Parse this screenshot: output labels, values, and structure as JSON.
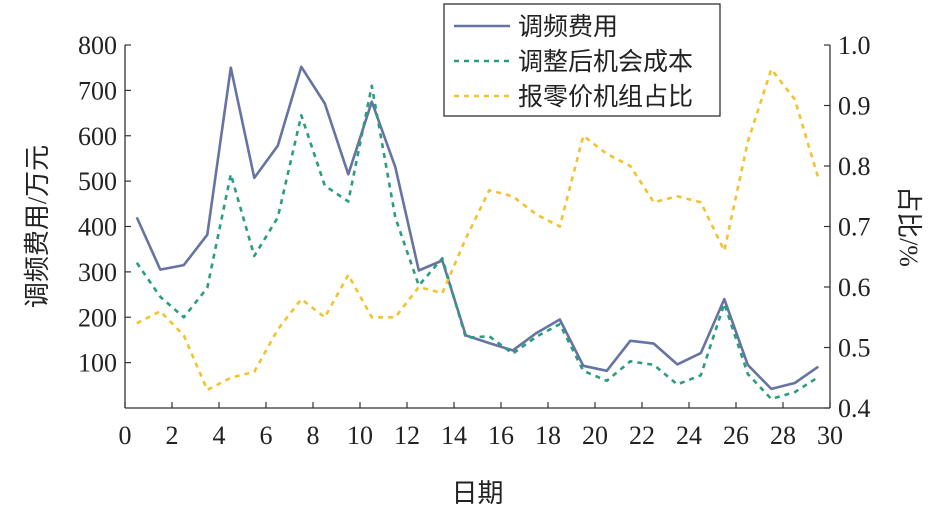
{
  "chart_data": {
    "type": "line",
    "xlabel": "日期",
    "ylabel": "调频费用/万元",
    "y2label": "占比/%",
    "xlim": [
      0,
      30
    ],
    "ylim": [
      0,
      800
    ],
    "y2lim": [
      0.4,
      1.0
    ],
    "x_ticks": [
      0,
      2,
      4,
      6,
      8,
      10,
      12,
      14,
      16,
      18,
      20,
      22,
      24,
      26,
      28,
      30
    ],
    "y_ticks": [
      100,
      200,
      300,
      400,
      500,
      600,
      700,
      800
    ],
    "y2_ticks": [
      "0.4",
      "0.5",
      "0.6",
      "0.7",
      "0.8",
      "0.9",
      "1.0"
    ],
    "grid": false,
    "legend_position": "top-right",
    "x": [
      0.5,
      1.5,
      2.5,
      3.5,
      4.5,
      5.5,
      6.5,
      7.5,
      8.5,
      9.5,
      10.5,
      11.5,
      12.5,
      13.5,
      14.5,
      15.5,
      16.5,
      17.5,
      18.5,
      19.5,
      20.5,
      21.5,
      22.5,
      23.5,
      24.5,
      25.5,
      26.5,
      27.5,
      28.5,
      29.5
    ],
    "series": [
      {
        "name": "调频费用",
        "axis": "left",
        "style": "solid",
        "color": "#6673a3",
        "values": [
          420,
          305,
          315,
          382,
          750,
          507,
          578,
          752,
          671,
          515,
          675,
          531,
          303,
          325,
          160,
          143,
          127,
          165,
          195,
          93,
          82,
          148,
          142,
          96,
          121,
          240,
          95,
          42,
          55,
          91
        ]
      },
      {
        "name": "调整后机会成本",
        "axis": "left",
        "style": "dotted",
        "color": "#2a9d7e",
        "values": [
          320,
          245,
          200,
          265,
          515,
          335,
          420,
          645,
          490,
          455,
          710,
          420,
          270,
          330,
          155,
          158,
          120,
          157,
          185,
          82,
          60,
          103,
          95,
          52,
          72,
          230,
          75,
          20,
          35,
          68
        ]
      },
      {
        "name": "报零价机组占比",
        "axis": "right",
        "style": "dotted",
        "color": "#f2c32e",
        "values": [
          0.54,
          0.56,
          0.52,
          0.43,
          0.45,
          0.46,
          0.53,
          0.58,
          0.55,
          0.62,
          0.55,
          0.55,
          0.6,
          0.59,
          0.68,
          0.76,
          0.75,
          0.72,
          0.7,
          0.85,
          0.82,
          0.8,
          0.74,
          0.75,
          0.74,
          0.66,
          0.84,
          0.96,
          0.91,
          0.78
        ]
      }
    ]
  }
}
